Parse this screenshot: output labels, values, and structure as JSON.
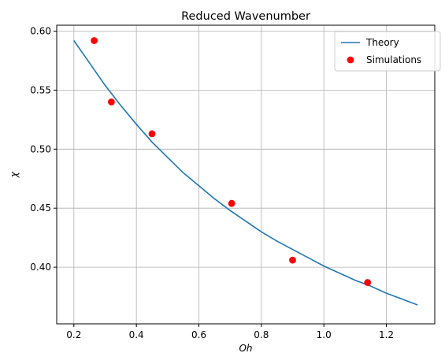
{
  "chart_data": {
    "type": "line",
    "title": "Reduced Wavenumber",
    "xlabel": "Oh",
    "ylabel": "χ",
    "xlim": [
      0.145,
      1.355
    ],
    "ylim": [
      0.352,
      0.605
    ],
    "xticks": [
      "0.2",
      "0.4",
      "0.6",
      "0.8",
      "1.0",
      "1.2"
    ],
    "yticks": [
      "0.40",
      "0.45",
      "0.50",
      "0.55",
      "0.60"
    ],
    "grid": true,
    "legend_position": "upper right",
    "series": [
      {
        "name": "Theory",
        "kind": "line",
        "color": "#1f77b4",
        "x": [
          0.2,
          0.25,
          0.3,
          0.35,
          0.4,
          0.45,
          0.5,
          0.55,
          0.6,
          0.65,
          0.7,
          0.75,
          0.8,
          0.85,
          0.9,
          0.95,
          1.0,
          1.05,
          1.1,
          1.15,
          1.2,
          1.25,
          1.3
        ],
        "y": [
          0.592,
          0.573,
          0.554,
          0.537,
          0.521,
          0.506,
          0.493,
          0.48,
          0.469,
          0.458,
          0.448,
          0.439,
          0.43,
          0.422,
          0.415,
          0.408,
          0.401,
          0.395,
          0.389,
          0.384,
          0.378,
          0.373,
          0.368
        ]
      },
      {
        "name": "Simulations",
        "kind": "scatter",
        "color": "#ff0000",
        "x": [
          0.265,
          0.32,
          0.45,
          0.705,
          0.9,
          1.14
        ],
        "y": [
          0.592,
          0.54,
          0.513,
          0.454,
          0.406,
          0.387
        ]
      }
    ]
  }
}
